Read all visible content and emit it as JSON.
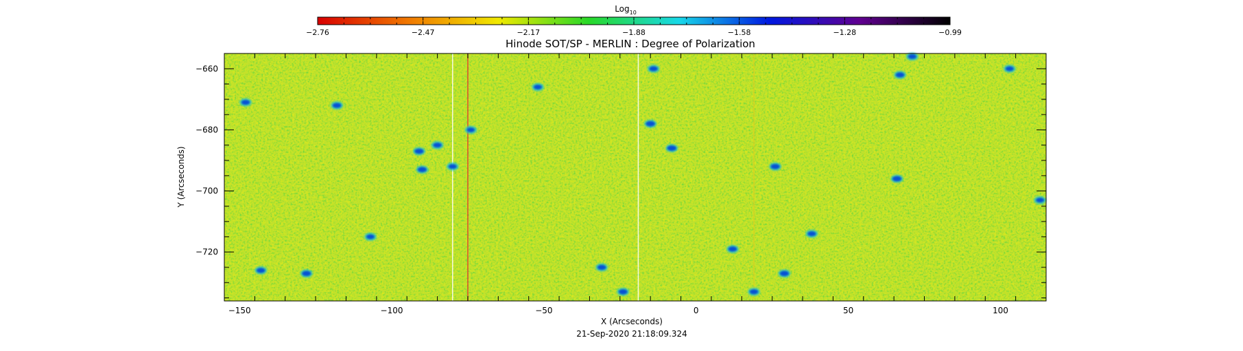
{
  "chart_data": {
    "type": "heatmap",
    "title": "Hinode SOT/SP - MERLIN : Degree of Polarization",
    "xlabel": "X (Arcseconds)",
    "ylabel": "Y (Arcseconds)",
    "timestamp": "21-Sep-2020 21:18:09.324",
    "xlim": [
      -155,
      115
    ],
    "ylim": [
      -736,
      -655
    ],
    "x_ticks": [
      -150,
      -100,
      -50,
      0,
      50,
      100
    ],
    "x_tick_labels": [
      "−150",
      "−100",
      "−50",
      "0",
      "50",
      "100"
    ],
    "y_ticks": [
      -660,
      -680,
      -700,
      -720
    ],
    "y_tick_labels": [
      "−660",
      "−680",
      "−700",
      "−720"
    ],
    "colorbar": {
      "label_base": "Log",
      "label_sub": "10",
      "range": [
        -2.76,
        -0.99
      ],
      "tick_labels": [
        "−2.76",
        "−2.47",
        "−2.17",
        "−1.88",
        "−1.58",
        "−1.28",
        "−0.99"
      ],
      "colormap": [
        "#d80000",
        "#f07800",
        "#f0e800",
        "#28d828",
        "#18d8e8",
        "#0018e0",
        "#600090",
        "#000000"
      ]
    },
    "colors": {
      "background_field": "#c2e12c",
      "green_speckle": "#3cd445",
      "yellow_speckle": "#e8ec16",
      "concentration": "#0044d8"
    },
    "bad_columns_x": [
      -80,
      -75,
      -19,
      19
    ],
    "features": [
      {
        "x": -148,
        "y": -671,
        "level": 0.55
      },
      {
        "x": -143,
        "y": -726,
        "level": 0.6
      },
      {
        "x": -128,
        "y": -727,
        "level": 0.65
      },
      {
        "x": -118,
        "y": -672,
        "level": 0.6
      },
      {
        "x": -107,
        "y": -715,
        "level": 0.5
      },
      {
        "x": -91,
        "y": -687,
        "level": 0.65
      },
      {
        "x": -90,
        "y": -693,
        "level": 0.65
      },
      {
        "x": -85,
        "y": -685,
        "level": 0.55
      },
      {
        "x": -80,
        "y": -692,
        "level": 0.5
      },
      {
        "x": -74,
        "y": -680,
        "level": 0.45
      },
      {
        "x": -52,
        "y": -666,
        "level": 0.5
      },
      {
        "x": -31,
        "y": -725,
        "level": 0.6
      },
      {
        "x": -24,
        "y": -733,
        "level": 0.6
      },
      {
        "x": -15,
        "y": -678,
        "level": 0.7
      },
      {
        "x": -14,
        "y": -660,
        "level": 0.55
      },
      {
        "x": -8,
        "y": -686,
        "level": 0.7
      },
      {
        "x": 12,
        "y": -719,
        "level": 0.6
      },
      {
        "x": 19,
        "y": -733,
        "level": 0.55
      },
      {
        "x": 26,
        "y": -692,
        "level": 0.65
      },
      {
        "x": 29,
        "y": -727,
        "level": 0.65
      },
      {
        "x": 38,
        "y": -714,
        "level": 0.55
      },
      {
        "x": 66,
        "y": -696,
        "level": 0.7
      },
      {
        "x": 67,
        "y": -662,
        "level": 0.6
      },
      {
        "x": 71,
        "y": -656,
        "level": 0.55
      },
      {
        "x": 113,
        "y": -703,
        "level": 0.5
      },
      {
        "x": 103,
        "y": -660,
        "level": 0.5
      }
    ]
  }
}
